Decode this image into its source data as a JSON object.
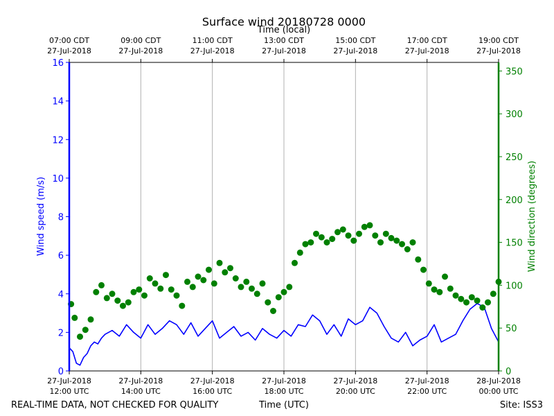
{
  "chart_data": {
    "type": "scatter",
    "title": "Surface wind 20180728 0000",
    "top_axis_label": "Time (local)",
    "xlabel": "Time (UTC)",
    "ylabel_left": "Wind speed (m/s)",
    "ylabel_right": "Wind direction (degrees)",
    "footer_left": "REAL-TIME DATA, NOT CHECKED FOR QUALITY",
    "footer_right": "Site: ISS3",
    "x_range_hours": [
      0,
      12
    ],
    "ylim_left": [
      0,
      16
    ],
    "ylim_right": [
      0,
      360
    ],
    "left_ticks": [
      "0",
      "2",
      "4",
      "6",
      "8",
      "10",
      "12",
      "14",
      "16"
    ],
    "right_ticks": [
      "0",
      "50",
      "100",
      "150",
      "200",
      "250",
      "300",
      "350"
    ],
    "bottom_ticks": [
      {
        "hour": 0,
        "line1": "27-Jul-2018",
        "line2": "12:00 UTC"
      },
      {
        "hour": 2,
        "line1": "27-Jul-2018",
        "line2": "14:00 UTC"
      },
      {
        "hour": 4,
        "line1": "27-Jul-2018",
        "line2": "16:00 UTC"
      },
      {
        "hour": 6,
        "line1": "27-Jul-2018",
        "line2": "18:00 UTC"
      },
      {
        "hour": 8,
        "line1": "27-Jul-2018",
        "line2": "20:00 UTC"
      },
      {
        "hour": 10,
        "line1": "27-Jul-2018",
        "line2": "22:00 UTC"
      },
      {
        "hour": 12,
        "line1": "28-Jul-2018",
        "line2": "00:00 UTC"
      }
    ],
    "top_ticks": [
      {
        "hour": 0,
        "line1": "07:00 CDT",
        "line2": "27-Jul-2018"
      },
      {
        "hour": 2,
        "line1": "09:00 CDT",
        "line2": "27-Jul-2018"
      },
      {
        "hour": 4,
        "line1": "11:00 CDT",
        "line2": "27-Jul-2018"
      },
      {
        "hour": 6,
        "line1": "13:00 CDT",
        "line2": "27-Jul-2018"
      },
      {
        "hour": 8,
        "line1": "15:00 CDT",
        "line2": "27-Jul-2018"
      },
      {
        "hour": 10,
        "line1": "17:00 CDT",
        "line2": "27-Jul-2018"
      },
      {
        "hour": 12,
        "line1": "19:00 CDT",
        "line2": "27-Jul-2018"
      }
    ],
    "colors": {
      "speed": "#0000ff",
      "direction": "#008000",
      "grid": "#b0b0b0"
    },
    "series": [
      {
        "name": "Wind speed (m/s)",
        "axis": "left",
        "style": "line",
        "x": [
          0,
          0.1,
          0.2,
          0.3,
          0.4,
          0.5,
          0.6,
          0.7,
          0.8,
          0.9,
          1.0,
          1.2,
          1.4,
          1.6,
          1.8,
          2.0,
          2.2,
          2.4,
          2.6,
          2.8,
          3.0,
          3.2,
          3.4,
          3.6,
          3.8,
          4.0,
          4.2,
          4.4,
          4.6,
          4.8,
          5.0,
          5.2,
          5.4,
          5.6,
          5.8,
          6.0,
          6.2,
          6.4,
          6.6,
          6.8,
          7.0,
          7.2,
          7.4,
          7.6,
          7.8,
          8.0,
          8.2,
          8.4,
          8.6,
          8.8,
          9.0,
          9.2,
          9.4,
          9.6,
          9.8,
          10.0,
          10.2,
          10.4,
          10.6,
          10.8,
          11.0,
          11.2,
          11.4,
          11.6,
          11.8,
          12.0
        ],
        "values": [
          1.2,
          1.0,
          0.4,
          0.3,
          0.7,
          0.9,
          1.3,
          1.5,
          1.4,
          1.7,
          1.9,
          2.1,
          1.8,
          2.4,
          2.0,
          1.7,
          2.4,
          1.9,
          2.2,
          2.6,
          2.4,
          1.9,
          2.5,
          1.8,
          2.2,
          2.6,
          1.7,
          2.0,
          2.3,
          1.8,
          2.0,
          1.6,
          2.2,
          1.9,
          1.7,
          2.1,
          1.8,
          2.4,
          2.3,
          2.9,
          2.6,
          1.9,
          2.4,
          1.8,
          2.7,
          2.4,
          2.6,
          3.3,
          3.0,
          2.3,
          1.7,
          1.5,
          2.0,
          1.3,
          1.6,
          1.8,
          2.4,
          1.5,
          1.7,
          1.9,
          2.6,
          3.2,
          3.5,
          3.3,
          2.2,
          1.5
        ]
      },
      {
        "name": "Wind direction (degrees)",
        "axis": "right",
        "style": "points",
        "x": [
          0.05,
          0.15,
          0.3,
          0.45,
          0.6,
          0.75,
          0.9,
          1.05,
          1.2,
          1.35,
          1.5,
          1.65,
          1.8,
          1.95,
          2.1,
          2.25,
          2.4,
          2.55,
          2.7,
          2.85,
          3.0,
          3.15,
          3.3,
          3.45,
          3.6,
          3.75,
          3.9,
          4.05,
          4.2,
          4.35,
          4.5,
          4.65,
          4.8,
          4.95,
          5.1,
          5.25,
          5.4,
          5.55,
          5.7,
          5.85,
          6.0,
          6.15,
          6.3,
          6.45,
          6.6,
          6.75,
          6.9,
          7.05,
          7.2,
          7.35,
          7.5,
          7.65,
          7.8,
          7.95,
          8.1,
          8.25,
          8.4,
          8.55,
          8.7,
          8.85,
          9.0,
          9.15,
          9.3,
          9.45,
          9.6,
          9.75,
          9.9,
          10.05,
          10.2,
          10.35,
          10.5,
          10.65,
          10.8,
          10.95,
          11.1,
          11.25,
          11.4,
          11.55,
          11.7,
          11.85,
          12.0
        ],
        "values": [
          78,
          62,
          40,
          48,
          60,
          92,
          100,
          85,
          90,
          82,
          76,
          80,
          92,
          95,
          88,
          108,
          102,
          96,
          112,
          95,
          88,
          76,
          104,
          98,
          110,
          106,
          118,
          102,
          126,
          115,
          120,
          108,
          98,
          104,
          96,
          90,
          102,
          80,
          70,
          86,
          92,
          98,
          126,
          138,
          148,
          150,
          160,
          156,
          150,
          154,
          162,
          165,
          158,
          152,
          160,
          168,
          170,
          158,
          150,
          160,
          155,
          152,
          148,
          142,
          150,
          130,
          118,
          102,
          95,
          92,
          110,
          96,
          88,
          84,
          80,
          86,
          82,
          74,
          80,
          90,
          104
        ]
      }
    ]
  }
}
